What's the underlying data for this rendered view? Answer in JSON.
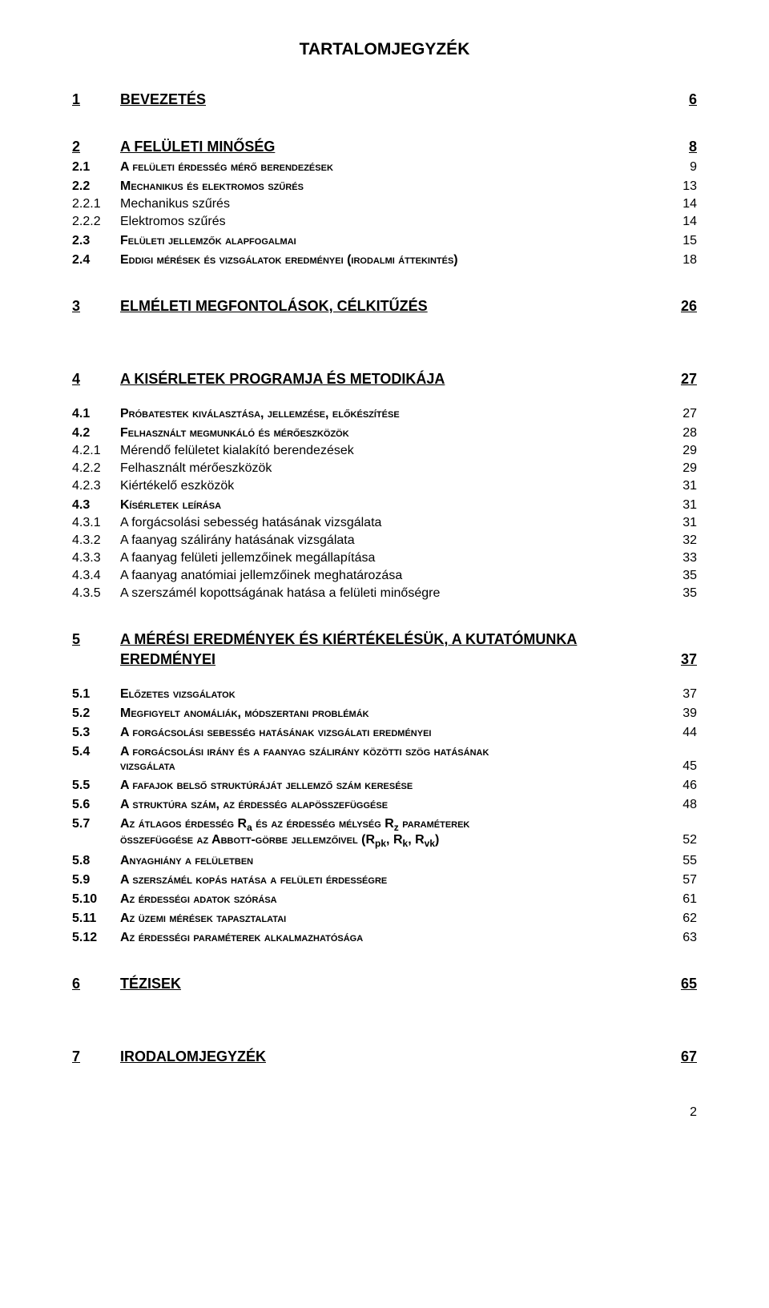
{
  "title": "TARTALOMJEGYZÉK",
  "page_footer": "2",
  "entries": [
    {
      "type": "h1",
      "num": "1",
      "label": "BEVEZETÉS",
      "page": "6"
    },
    {
      "type": "h1",
      "num": "2",
      "label": "A FELÜLETI MINŐSÉG",
      "page": "8"
    },
    {
      "type": "h2",
      "num": "2.1",
      "label": "A felületi érdesség mérő berendezések",
      "page": "9"
    },
    {
      "type": "h2",
      "num": "2.2",
      "label": "Mechanikus és elektromos szűrés",
      "page": "13"
    },
    {
      "type": "h3",
      "num": "2.2.1",
      "label": "Mechanikus szűrés",
      "page": "14"
    },
    {
      "type": "h3",
      "num": "2.2.2",
      "label": "Elektromos szűrés",
      "page": "14"
    },
    {
      "type": "h2",
      "num": "2.3",
      "label": "Felületi jellemzők alapfogalmai",
      "page": "15"
    },
    {
      "type": "h2",
      "num": "2.4",
      "label": "Eddigi mérések és vizsgálatok eredményei (irodalmi áttekintés)",
      "page": "18"
    },
    {
      "type": "h1",
      "num": "3",
      "label": "ELMÉLETI MEGFONTOLÁSOK, CÉLKITŰZÉS",
      "page": "26"
    },
    {
      "type": "h1big",
      "num": "4",
      "label": "A KISÉRLETEK PROGRAMJA ÉS METODIKÁJA",
      "page": "27"
    },
    {
      "type": "h2",
      "num": "4.1",
      "label": "Próbatestek kiválasztása, jellemzése, előkészítése",
      "page": "27",
      "extraTop": true
    },
    {
      "type": "h2",
      "num": "4.2",
      "label": "Felhasznált megmunkáló és mérőeszközök",
      "page": "28"
    },
    {
      "type": "h3",
      "num": "4.2.1",
      "label": "Mérendő felületet kialakító berendezések",
      "page": "29"
    },
    {
      "type": "h3",
      "num": "4.2.2",
      "label": "Felhasznált mérőeszközök",
      "page": "29"
    },
    {
      "type": "h3",
      "num": "4.2.3",
      "label": "Kiértékelő eszközök",
      "page": "31"
    },
    {
      "type": "h2",
      "num": "4.3",
      "label": "Kísérletek leírása",
      "page": "31"
    },
    {
      "type": "h3",
      "num": "4.3.1",
      "label": "A forgácsolási sebesség hatásának vizsgálata",
      "page": "31"
    },
    {
      "type": "h3",
      "num": "4.3.2",
      "label": "A faanyag szálirány hatásának vizsgálata",
      "page": "32"
    },
    {
      "type": "h3",
      "num": "4.3.3",
      "label": "A faanyag felületi jellemzőinek megállapítása",
      "page": "33"
    },
    {
      "type": "h3",
      "num": "4.3.4",
      "label": "A faanyag anatómiai jellemzőinek meghatározása",
      "page": "35"
    },
    {
      "type": "h3",
      "num": "4.3.5",
      "label": "A szerszámél kopottságának hatása a felületi minőségre",
      "page": "35"
    },
    {
      "type": "h1multi",
      "num": "5",
      "label1": "A MÉRÉSI EREDMÉNYEK ÉS KIÉRTÉKELÉSÜK, A KUTATÓMUNKA",
      "label2": "EREDMÉNYEI",
      "page": "37"
    },
    {
      "type": "h2",
      "num": "5.1",
      "label": "Előzetes vizsgálatok",
      "page": "37",
      "extraTop": true
    },
    {
      "type": "h2",
      "num": "5.2",
      "label": "Megfigyelt anomáliák, módszertani problémák",
      "page": "39"
    },
    {
      "type": "h2",
      "num": "5.3",
      "label": "A forgácsolási sebesség hatásának vizsgálati eredményei",
      "page": "44"
    },
    {
      "type": "h2multi",
      "num": "5.4",
      "label1": "A forgácsolási irány és a faanyag szálirány közötti szög hatásának",
      "label2": "vizsgálata",
      "page": "45"
    },
    {
      "type": "h2",
      "num": "5.5",
      "label": "A fafajok belső struktúráját jellemző szám keresése",
      "page": "46"
    },
    {
      "type": "h2",
      "num": "5.6",
      "label": "A struktúra szám, az érdesség alapösszefüggése",
      "page": "48"
    },
    {
      "type": "h2multi_sub",
      "num": "5.7",
      "line1_pre": "Az átlagos érdesség R",
      "line1_sub1": "a",
      "line1_mid": " és az érdesség mélység R",
      "line1_sub2": "z",
      "line1_post": " paraméterek",
      "line2_pre": "összefüggése az Abbott-görbe jellemzőivel (R",
      "line2_sub1": "pk",
      "line2_mid1": ", R",
      "line2_sub2": "k",
      "line2_mid2": ", R",
      "line2_sub3": "vk",
      "line2_post": ")",
      "page": "52"
    },
    {
      "type": "h2",
      "num": "5.8",
      "label": "Anyaghiány a felületben",
      "page": "55"
    },
    {
      "type": "h2",
      "num": "5.9",
      "label": "A szerszámél kopás hatása a felületi érdességre",
      "page": "57"
    },
    {
      "type": "h2",
      "num": "5.10",
      "label": "Az érdességi adatok szórása",
      "page": "61"
    },
    {
      "type": "h2",
      "num": "5.11",
      "label": "Az üzemi mérések tapasztalatai",
      "page": "62"
    },
    {
      "type": "h2",
      "num": "5.12",
      "label": "Az érdességi paraméterek alkalmazhatósága",
      "page": "63"
    },
    {
      "type": "h1",
      "num": "6",
      "label": "TÉZISEK",
      "page": "65"
    },
    {
      "type": "h1big",
      "num": "7",
      "label": "IRODALOMJEGYZÉK",
      "page": "67"
    }
  ]
}
